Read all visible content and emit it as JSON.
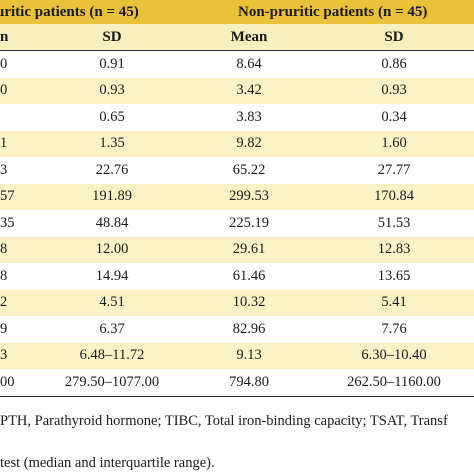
{
  "header": {
    "group_left": "uritic patients (n = 45)",
    "group_right": "Non-pruritic patients (n = 45)"
  },
  "subheader": {
    "c1": "n",
    "c2": "SD",
    "c3": "Mean",
    "c4": "SD"
  },
  "rows": [
    [
      "0",
      "0.91",
      "8.64",
      "0.86"
    ],
    [
      "0",
      "0.93",
      "3.42",
      "0.93"
    ],
    [
      "",
      "0.65",
      "3.83",
      "0.34"
    ],
    [
      "1",
      "1.35",
      "9.82",
      "1.60"
    ],
    [
      "3",
      "22.76",
      "65.22",
      "27.77"
    ],
    [
      "57",
      "191.89",
      "299.53",
      "170.84"
    ],
    [
      "35",
      "48.84",
      "225.19",
      "51.53"
    ],
    [
      "8",
      "12.00",
      "29.61",
      "12.83"
    ],
    [
      "8",
      "14.94",
      "61.46",
      "13.65"
    ],
    [
      "2",
      "4.51",
      "10.32",
      "5.41"
    ],
    [
      "9",
      "6.37",
      "82.96",
      "7.76"
    ],
    [
      "3",
      "6.48–11.72",
      "9.13",
      "6.30–10.40"
    ],
    [
      "00",
      "279.50–1077.00",
      "794.80",
      "262.50–1160.00"
    ]
  ],
  "footnotes": {
    "line1": "PTH, Parathyroid hormone; TIBC, Total iron-binding capacity; TSAT, Transf",
    "line2": "test (median and interquartile range)."
  }
}
